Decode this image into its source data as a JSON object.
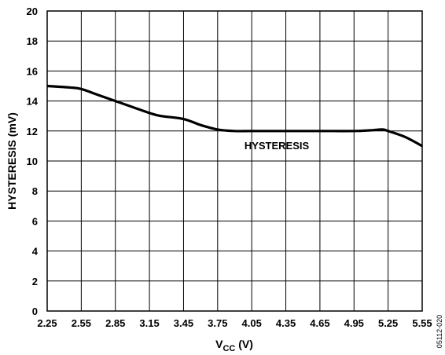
{
  "chart_data": {
    "type": "line",
    "xlabel_main": "V",
    "xlabel_sub": "CC",
    "xlabel_unit": " (V)",
    "ylabel": "HYSTERESIS (mV)",
    "annotation": "HYSTERESIS",
    "figure_id": "05112-020",
    "xlim": [
      2.25,
      5.55
    ],
    "ylim": [
      0,
      20
    ],
    "x_ticks": [
      "2.25",
      "2.55",
      "2.85",
      "3.15",
      "3.45",
      "3.75",
      "4.05",
      "4.35",
      "4.65",
      "4.95",
      "5.25",
      "5.55"
    ],
    "y_ticks": [
      "0",
      "2",
      "4",
      "6",
      "8",
      "10",
      "12",
      "14",
      "16",
      "18",
      "20"
    ],
    "grid": true,
    "series": [
      {
        "color": "#000000",
        "x": [
          2.25,
          2.45,
          2.55,
          2.7,
          2.85,
          3.0,
          3.15,
          3.25,
          3.45,
          3.6,
          3.75,
          3.9,
          4.05,
          4.35,
          4.65,
          4.95,
          5.1,
          5.2,
          5.25,
          5.4,
          5.55
        ],
        "y": [
          15.0,
          14.9,
          14.8,
          14.4,
          14.0,
          13.6,
          13.2,
          13.0,
          12.8,
          12.4,
          12.1,
          12.0,
          12.0,
          12.0,
          12.0,
          12.0,
          12.05,
          12.1,
          12.0,
          11.6,
          11.0
        ]
      }
    ]
  }
}
